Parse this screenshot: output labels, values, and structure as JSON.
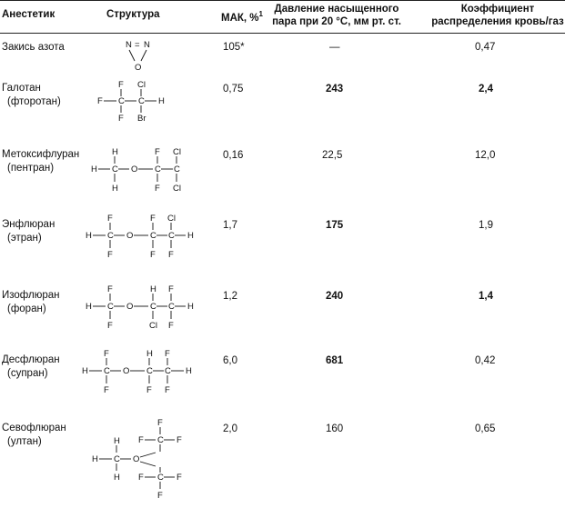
{
  "headers": {
    "anesthetic": "Анестетик",
    "structure": "Структура",
    "mac": "МАК, %",
    "mac_sup": "1",
    "pressure_line1": "Давление насыщенного",
    "pressure_line2": "пара при 20 °C, мм рт. ст.",
    "coef_line1": "Коэффициент",
    "coef_line2": "распределения кровь/газ"
  },
  "rows": [
    {
      "name": "Закись азота",
      "alt": "",
      "mac": "105*",
      "pressure": "—",
      "coef": "0,47"
    },
    {
      "name": "Галотан",
      "alt": "(фторотан)",
      "mac": "0,75",
      "pressure": "243",
      "coef": "2,4"
    },
    {
      "name": "Метоксифлуран",
      "alt": "(пентран)",
      "mac": "0,16",
      "pressure": "22,5",
      "coef": "12,0"
    },
    {
      "name": "Энфлюран",
      "alt": "(этран)",
      "mac": "1,7",
      "pressure": "175",
      "coef": "1,9"
    },
    {
      "name": "Изофлюран",
      "alt": "(форан)",
      "mac": "1,2",
      "pressure": "240",
      "coef": "1,4"
    },
    {
      "name": "Десфлюран",
      "alt": "(супран)",
      "mac": "6,0",
      "pressure": "681",
      "coef": "0,42"
    },
    {
      "name": "Севофлюран",
      "alt": "(ултан)",
      "mac": "2,0",
      "pressure": "160",
      "coef": "0,65"
    }
  ],
  "structures": {
    "nitrous": {
      "n1": "N",
      "eq": "=",
      "n2": "N",
      "o": "O"
    },
    "halothane": {
      "f_top": "F",
      "cl_top": "Cl",
      "f_left": "F",
      "c1": "C",
      "c2": "C",
      "h_right": "H",
      "f_bottom": "F",
      "br_bottom": "Br"
    },
    "methoxyflurane": {
      "h_top": "H",
      "f_top": "F",
      "cl_top": "Cl",
      "h_left": "H",
      "c1": "C",
      "o": "O",
      "c2": "C",
      "c3": "C",
      "h_bottom": "H",
      "f_bottom": "F",
      "cl_bottom": "Cl"
    },
    "enflurane": {
      "f_top": "F",
      "f_top2": "F",
      "cl_top": "Cl",
      "h_left": "H",
      "c1": "C",
      "o": "O",
      "c2": "C",
      "c3": "C",
      "h_right": "H",
      "f_bottom": "F",
      "f_bottom2": "F",
      "f_bottom3": "F"
    },
    "isoflurane": {
      "f_top": "F",
      "h_top": "H",
      "f_top3": "F",
      "h_left": "H",
      "c1": "C",
      "o": "O",
      "c2": "C",
      "c3": "C",
      "h_right": "H",
      "f_bottom": "F",
      "cl_bottom": "Cl",
      "f_bottom3": "F"
    },
    "desflurane": {
      "f_top": "F",
      "h_top": "H",
      "f_top3": "F",
      "h_left": "H",
      "c1": "C",
      "o": "O",
      "c2": "C",
      "c3": "C",
      "h_right": "H",
      "f_bottom": "F",
      "f_bottom2": "F",
      "f_bottom3": "F"
    },
    "sevoflurane": {
      "f_top": "F",
      "f_r1": "F",
      "f_r2": "F",
      "h_top": "H",
      "h_left": "H",
      "c_ch": "C",
      "o": "O",
      "c_up": "C",
      "c_dn": "C",
      "h_bottom": "H",
      "f_bottom_r1": "F",
      "f_bottom_r2": "F",
      "f_bottom": "F"
    }
  }
}
